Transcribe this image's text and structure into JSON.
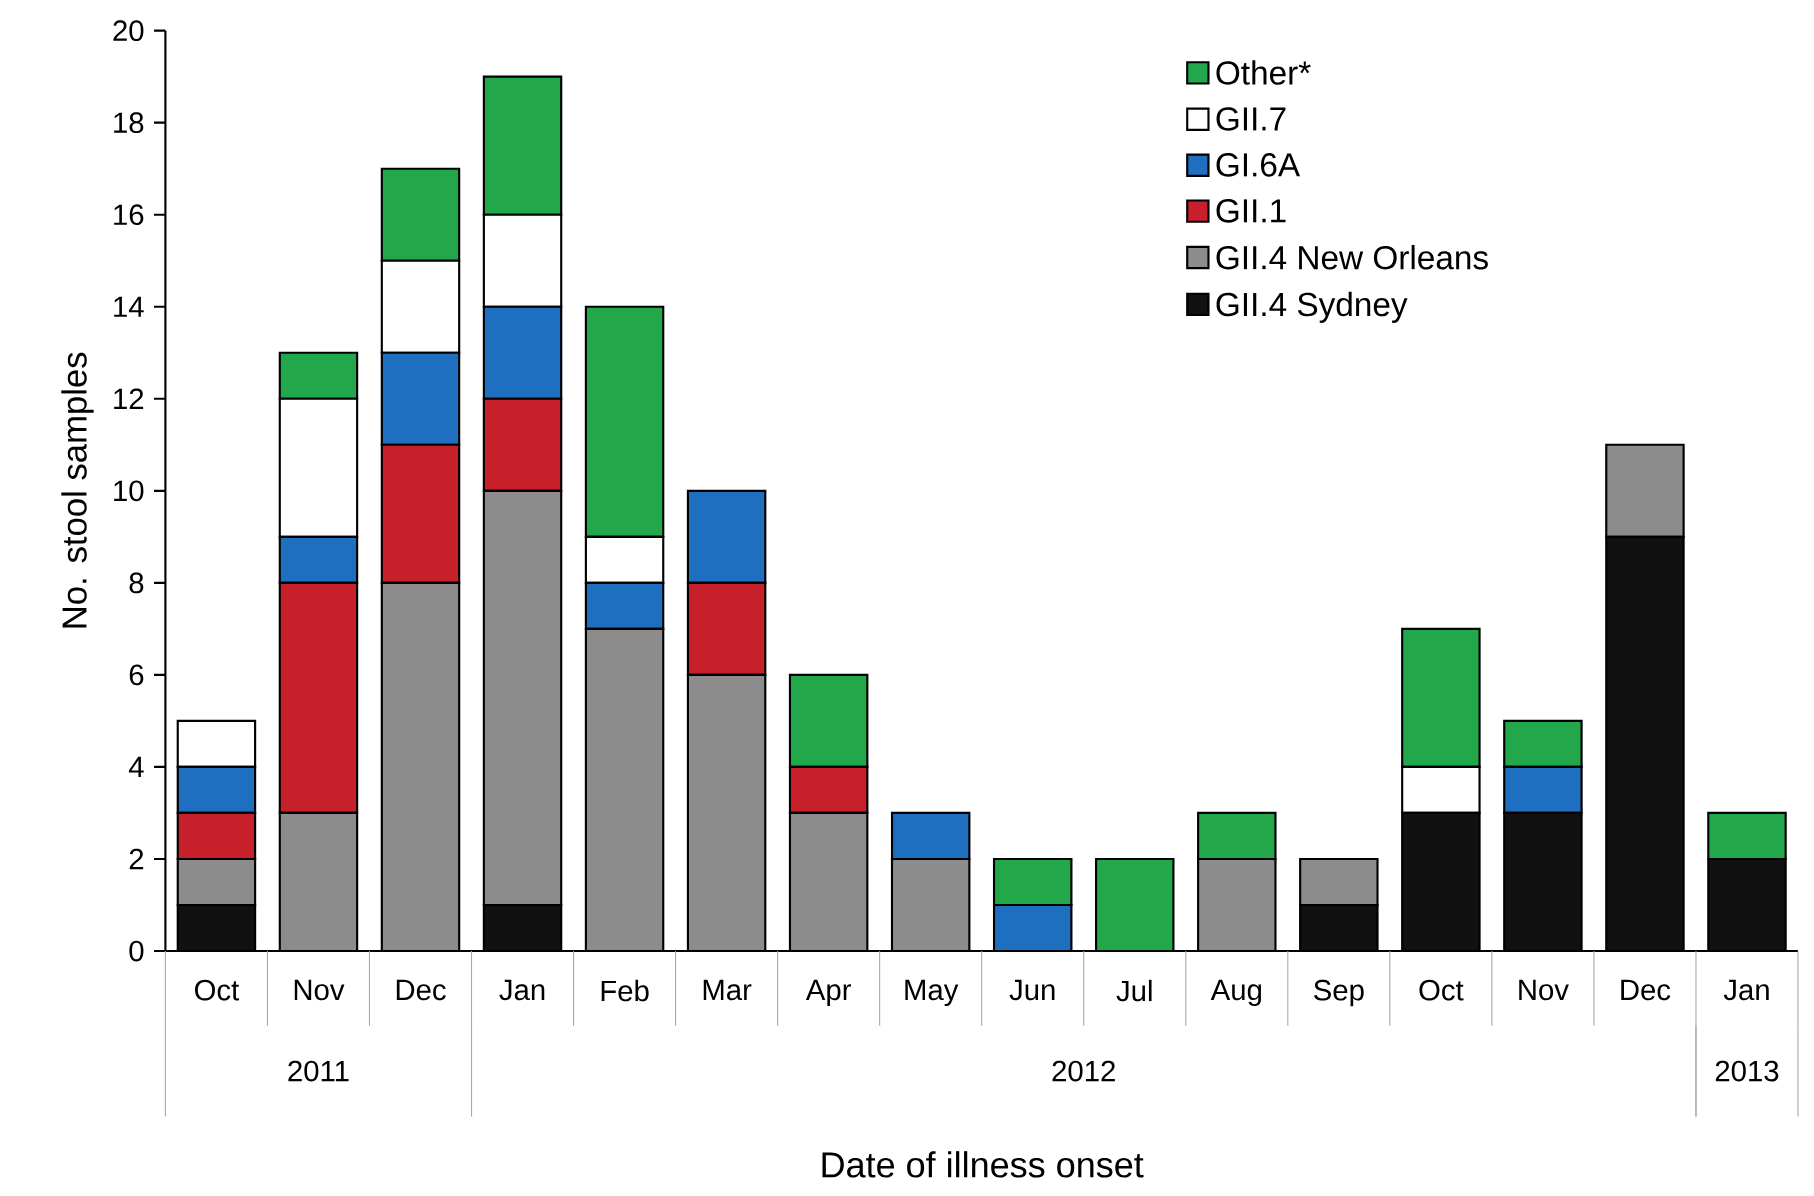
{
  "chart_data": {
    "type": "bar",
    "stacked": true,
    "categories": [
      "Oct",
      "Nov",
      "Dec",
      "Jan",
      "Feb",
      "Mar",
      "Apr",
      "May",
      "Jun",
      "Jul",
      "Aug",
      "Sep",
      "Oct",
      "Nov",
      "Dec",
      "Jan"
    ],
    "series": [
      {
        "name": "GII.4 Sydney",
        "color": "#111111",
        "values": [
          1,
          0,
          0,
          1,
          0,
          0,
          0,
          0,
          0,
          0,
          0,
          1,
          3,
          3,
          9,
          2
        ]
      },
      {
        "name": "GII.4 New Orleans",
        "color": "#8c8c8c",
        "values": [
          1,
          3,
          8,
          9,
          7,
          6,
          3,
          2,
          0,
          0,
          2,
          1,
          0,
          0,
          2,
          0
        ]
      },
      {
        "name": "GII.1",
        "color": "#c8202a",
        "values": [
          1,
          5,
          3,
          2,
          0,
          2,
          1,
          0,
          0,
          0,
          0,
          0,
          0,
          0,
          0,
          0
        ]
      },
      {
        "name": "GI.6A",
        "color": "#1f6fc0",
        "values": [
          1,
          1,
          2,
          2,
          1,
          2,
          0,
          1,
          1,
          0,
          0,
          0,
          0,
          1,
          0,
          0
        ]
      },
      {
        "name": "GII.7",
        "color": "#ffffff",
        "values": [
          1,
          3,
          2,
          2,
          1,
          0,
          0,
          0,
          0,
          0,
          0,
          0,
          1,
          0,
          0,
          0
        ]
      },
      {
        "name": "Other*",
        "color": "#22a84a",
        "values": [
          0,
          1,
          2,
          3,
          5,
          0,
          2,
          0,
          1,
          2,
          1,
          0,
          3,
          1,
          0,
          1
        ]
      }
    ],
    "ylim": [
      0,
      20
    ],
    "yticks": [
      0,
      2,
      4,
      6,
      8,
      10,
      12,
      14,
      16,
      18,
      20
    ],
    "ylabel": "No. stool samples",
    "xlabel": "Date of illness onset",
    "annotations": [
      "2011",
      "2012",
      "2013"
    ],
    "legend": "top right",
    "grid": false
  }
}
